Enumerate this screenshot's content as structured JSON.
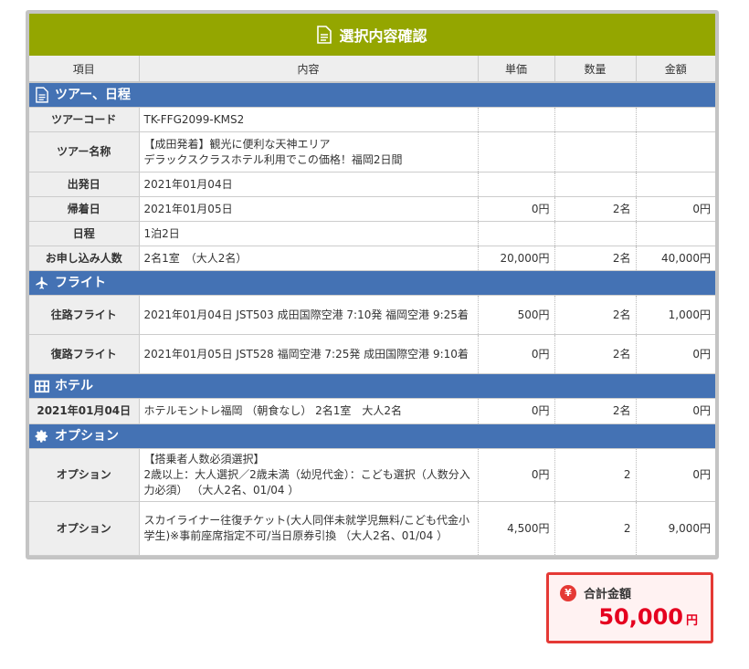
{
  "title": "選択内容確認",
  "headers": [
    "項目",
    "内容",
    "単価",
    "数量",
    "金額"
  ],
  "sections": {
    "tour": "ツアー、日程",
    "flight": "フライト",
    "hotel": "ホテル",
    "option": "オプション"
  },
  "tour_rows": [
    {
      "label": "ツアーコード",
      "content": "TK-FFG2099-KMS2",
      "price": "",
      "qty": "",
      "amount": ""
    },
    {
      "label": "ツアー名称",
      "content": "【成田発着】観光に便利な天神エリア",
      "content2": "デラックスクラスホテル利用でこの価格！福岡2日間",
      "price": "",
      "qty": "",
      "amount": ""
    },
    {
      "label": "出発日",
      "content": "2021年01月04日",
      "price": "",
      "qty": "",
      "amount": ""
    },
    {
      "label": "帰着日",
      "content": "2021年01月05日",
      "price": "0円",
      "qty": "2名",
      "amount": "0円"
    },
    {
      "label": "日程",
      "content": "1泊2日",
      "price": "",
      "qty": "",
      "amount": ""
    },
    {
      "label": "お申し込み人数",
      "content": "2名1室　（大人2名）",
      "price": "20,000円",
      "qty": "2名",
      "amount": "40,000円"
    }
  ],
  "flight_rows": [
    {
      "label": "往路フライト",
      "content": "2021年01月04日 JST503 成田国際空港 7:10発 福岡空港 9:25着",
      "price": "500円",
      "qty": "2名",
      "amount": "1,000円"
    },
    {
      "label": "復路フライト",
      "content": "2021年01月05日 JST528 福岡空港 7:25発 成田国際空港 9:10着",
      "price": "0円",
      "qty": "2名",
      "amount": "0円"
    }
  ],
  "hotel_rows": [
    {
      "label": "2021年01月04日",
      "content": "ホテルモントレ福岡 （朝食なし） 2名1室　大人2名",
      "price": "0円",
      "qty": "2名",
      "amount": "0円"
    }
  ],
  "option_rows": [
    {
      "label": "オプション",
      "content": "【搭乗者人数必須選択】",
      "content2": "2歳以上：大人選択／2歳未満（幼児代金）：こども選択（人数分入力必須） （大人2名、01/04 ）",
      "price": "0円",
      "qty": "2",
      "amount": "0円"
    },
    {
      "label": "オプション",
      "content": "スカイライナー往復チケット(大人同伴未就学児無料/こども代金小学生)※事前座席指定不可/当日原券引換 （大人2名、01/04 ）",
      "price": "4,500円",
      "qty": "2",
      "amount": "9,000円"
    }
  ],
  "total": {
    "label": "合計金額",
    "amount": "50,000",
    "unit": "円",
    "icon": "¥"
  },
  "colors": {
    "title_bg": "#94a600",
    "section_bg": "#4472b4",
    "total_accent": "#e53935"
  }
}
